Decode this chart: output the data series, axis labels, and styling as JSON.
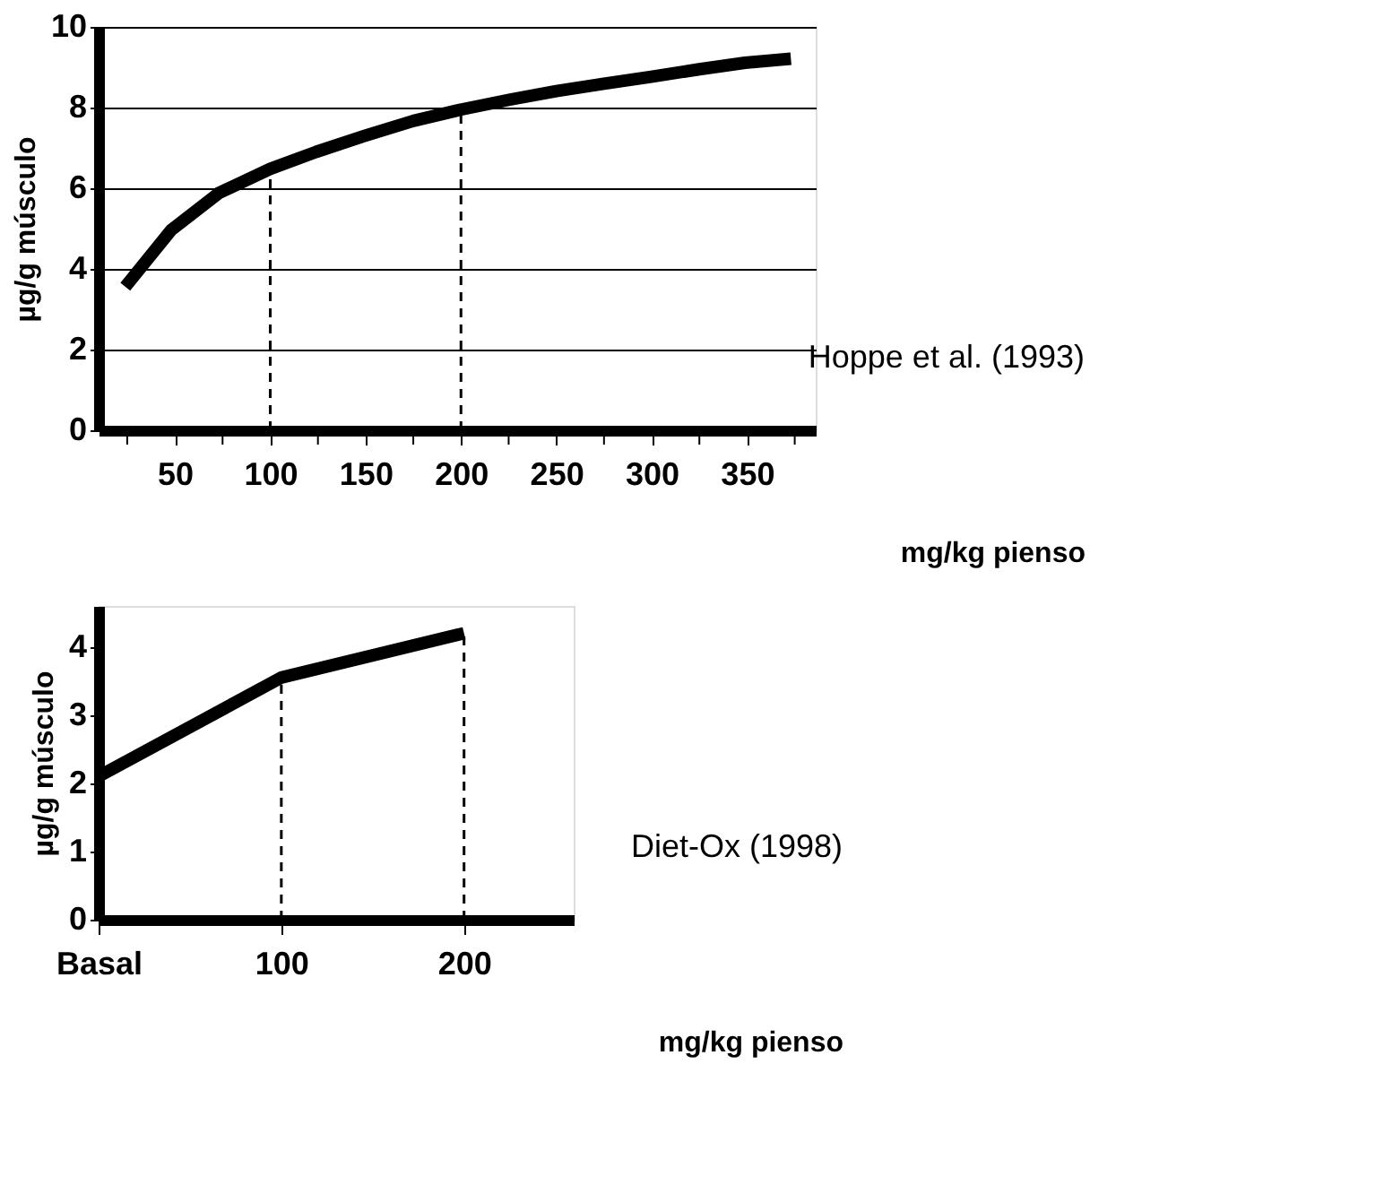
{
  "chart_data": [
    {
      "type": "line",
      "xlabel": "mg/kg pienso",
      "ylabel": "µg/g músculo",
      "x": [
        24,
        48,
        73,
        100,
        124,
        149,
        175,
        200,
        226,
        250,
        275,
        299,
        325,
        349,
        373
      ],
      "series": [
        {
          "color": "#000000",
          "values": [
            3.56,
            4.96,
            5.88,
            6.48,
            6.9,
            7.29,
            7.67,
            7.95,
            8.2,
            8.41,
            8.59,
            8.76,
            8.95,
            9.11,
            9.21
          ]
        }
      ],
      "xlim": [
        10,
        386
      ],
      "xticks": [
        {
          "value": 25,
          "label": null
        },
        50,
        {
          "value": 75,
          "label": null
        },
        100,
        {
          "value": 125,
          "label": null
        },
        150,
        {
          "value": 175,
          "label": null
        },
        200,
        {
          "value": 225,
          "label": null
        },
        250,
        {
          "value": 275,
          "label": null
        },
        300,
        {
          "value": 325,
          "label": null
        },
        350,
        {
          "value": 375,
          "label": null
        }
      ],
      "ylim": [
        0,
        10
      ],
      "yticks": [
        0,
        2,
        4,
        6,
        8,
        10
      ],
      "grid": "y",
      "line_style": "solid",
      "marker": "none",
      "ref_lines": [
        {
          "axis": "x",
          "value": 100,
          "line_style": "dashed",
          "color": "#000000"
        },
        {
          "axis": "x",
          "value": 200,
          "line_style": "dashed",
          "color": "#000000"
        }
      ],
      "annotations": [
        "Hoppe et al. (1993)"
      ]
    },
    {
      "type": "line",
      "xlabel": "mg/kg pienso",
      "ylabel": "µg/g músculo",
      "x": [
        0,
        100,
        200
      ],
      "series": [
        {
          "color": "#000000",
          "values": [
            2.1,
            3.55,
            4.2
          ]
        }
      ],
      "xlim": [
        0,
        260
      ],
      "xticks": [
        {
          "value": 0,
          "label": "Basal"
        },
        100,
        200
      ],
      "ylim": [
        0,
        4.6
      ],
      "yticks": [
        0,
        1,
        2,
        3,
        4
      ],
      "grid": false,
      "line_style": "solid",
      "marker": "none",
      "ref_lines": [
        {
          "axis": "x",
          "value": 100,
          "line_style": "dashed",
          "color": "#000000"
        },
        {
          "axis": "x",
          "value": 200,
          "line_style": "dashed",
          "color": "#000000"
        }
      ],
      "annotations": [
        "Diet-Ox (1998)"
      ]
    }
  ]
}
